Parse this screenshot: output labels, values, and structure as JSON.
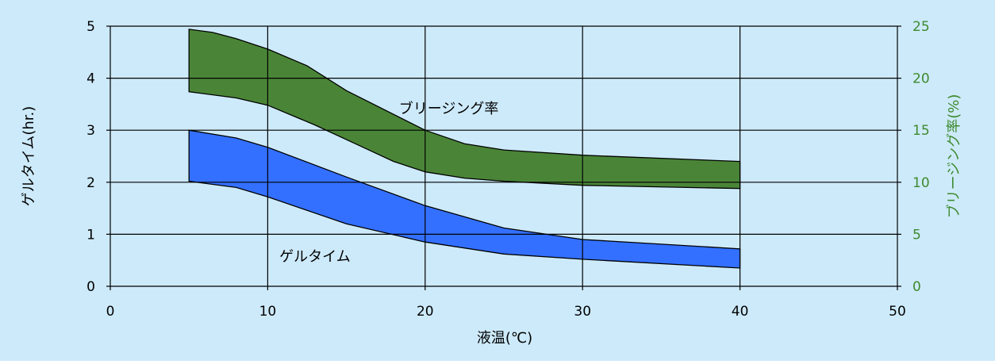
{
  "chart_data": {
    "type": "area",
    "title": "",
    "xlabel": "液温(℃)",
    "ylabel_left": "ゲルタイム(hr.)",
    "ylabel_right": "ブリージング率(%)",
    "xlim": [
      0,
      50
    ],
    "ylim_left": [
      0,
      5
    ],
    "ylim_right": [
      0,
      25
    ],
    "x_ticks": [
      "0",
      "10",
      "20",
      "30",
      "40",
      "50"
    ],
    "y_left_ticks": [
      "0",
      "1",
      "2",
      "3",
      "4",
      "5"
    ],
    "y_right_ticks": [
      "0",
      "5",
      "10",
      "15",
      "20",
      "25"
    ],
    "grid": true,
    "colors": {
      "background": "#cdeafa",
      "gel_band": "#3370ff",
      "bleeding_band": "#4a8537",
      "right_axis_text": "#3d8a2e",
      "grid": "#000000"
    },
    "series": [
      {
        "label": "ゲルタイム",
        "axis": "left",
        "upper": [
          [
            5,
            3.0
          ],
          [
            8,
            2.85
          ],
          [
            10,
            2.67
          ],
          [
            15,
            2.1
          ],
          [
            20,
            1.55
          ],
          [
            25,
            1.12
          ],
          [
            30,
            0.9
          ],
          [
            40,
            0.72
          ]
        ],
        "lower": [
          [
            5,
            2.02
          ],
          [
            8,
            1.9
          ],
          [
            10,
            1.72
          ],
          [
            15,
            1.2
          ],
          [
            20,
            0.85
          ],
          [
            25,
            0.62
          ],
          [
            30,
            0.52
          ],
          [
            40,
            0.35
          ]
        ]
      },
      {
        "label": "ブリージング率",
        "axis": "right",
        "upper": [
          [
            5,
            24.7
          ],
          [
            6.5,
            24.4
          ],
          [
            8,
            23.8
          ],
          [
            10,
            22.8
          ],
          [
            12.5,
            21.2
          ],
          [
            15,
            18.8
          ],
          [
            20,
            15.0
          ],
          [
            22.5,
            13.7
          ],
          [
            25,
            13.1
          ],
          [
            30,
            12.6
          ],
          [
            40,
            12.0
          ]
        ],
        "lower": [
          [
            5,
            18.7
          ],
          [
            8,
            18.1
          ],
          [
            10,
            17.4
          ],
          [
            13,
            15.5
          ],
          [
            16,
            13.4
          ],
          [
            18,
            12.0
          ],
          [
            20,
            11.0
          ],
          [
            22.5,
            10.4
          ],
          [
            25,
            10.1
          ],
          [
            30,
            9.7
          ],
          [
            40,
            9.4
          ]
        ]
      }
    ]
  }
}
